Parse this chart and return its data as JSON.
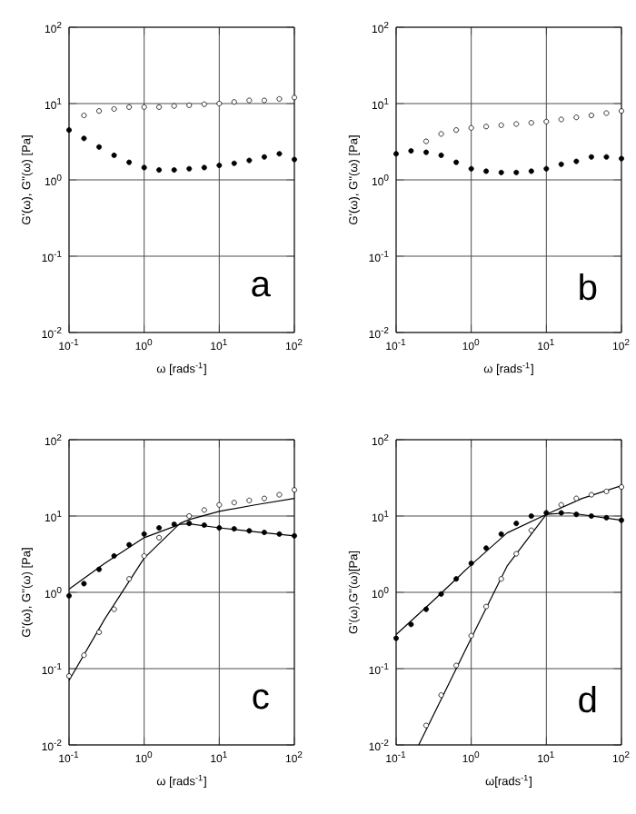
{
  "chart_data": [
    {
      "type": "scatter",
      "xlabel": "ω [rads$^{-1}$]",
      "ylabel": "G'(ω), G''(ω) [Pa]",
      "log": "xy",
      "grid": true,
      "annotations": [
        "a"
      ],
      "xlim": [
        0.1,
        100
      ],
      "ylim": [
        0.01,
        100
      ],
      "xticks": [
        {
          "value": 0.1,
          "label": "10$^{-1}$"
        },
        {
          "value": 1,
          "label": "10$^{0}$"
        },
        {
          "value": 10,
          "label": "10$^{1}$"
        },
        {
          "value": 100,
          "label": "10$^{2}$"
        }
      ],
      "yticks": [
        {
          "value": 0.01,
          "label": "10$^{-2}$"
        },
        {
          "value": 0.1,
          "label": "10$^{-1}$"
        },
        {
          "value": 1,
          "label": "10$^{0}$"
        },
        {
          "value": 10,
          "label": "10$^{1}$"
        },
        {
          "value": 100,
          "label": "10$^{2}$"
        }
      ],
      "series": [
        {
          "color": "#ffffff",
          "marker": "circle",
          "x": [
            0.158,
            0.251,
            0.398,
            0.631,
            1,
            1.58,
            2.51,
            3.98,
            6.31,
            10,
            15.8,
            25.1,
            39.8,
            63.1,
            100
          ],
          "values": [
            7,
            8,
            8.5,
            9,
            9,
            9,
            9.3,
            9.5,
            9.8,
            10,
            10.5,
            11,
            11,
            11.5,
            12
          ]
        },
        {
          "color": "#000000",
          "marker": "circle",
          "x": [
            0.1,
            0.158,
            0.251,
            0.398,
            0.631,
            1,
            1.58,
            2.51,
            3.98,
            6.31,
            10,
            15.8,
            25.1,
            39.8,
            63.1,
            100
          ],
          "values": [
            4.5,
            3.5,
            2.7,
            2.1,
            1.7,
            1.45,
            1.35,
            1.35,
            1.4,
            1.45,
            1.55,
            1.65,
            1.8,
            2.0,
            2.2,
            1.85
          ]
        }
      ]
    },
    {
      "type": "scatter",
      "xlabel": "ω [rads$^{-1}$]",
      "ylabel": "G'(ω), G''(ω) [Pa]",
      "log": "xy",
      "grid": true,
      "annotations": [
        "b"
      ],
      "xlim": [
        0.1,
        100
      ],
      "ylim": [
        0.01,
        100
      ],
      "xticks": [
        {
          "value": 0.1,
          "label": "10$^{-1}$"
        },
        {
          "value": 1,
          "label": "10$^{0}$"
        },
        {
          "value": 10,
          "label": "10$^{1}$"
        },
        {
          "value": 100,
          "label": "10$^{2}$"
        }
      ],
      "yticks": [
        {
          "value": 0.01,
          "label": "10$^{-2}$"
        },
        {
          "value": 0.1,
          "label": "10$^{-1}$"
        },
        {
          "value": 1,
          "label": "10$^{0}$"
        },
        {
          "value": 10,
          "label": "10$^{1}$"
        },
        {
          "value": 100,
          "label": "10$^{2}$"
        }
      ],
      "series": [
        {
          "color": "#ffffff",
          "marker": "circle",
          "x": [
            0.251,
            0.398,
            0.631,
            1,
            1.58,
            2.51,
            3.98,
            6.31,
            10,
            15.8,
            25.1,
            39.8,
            63.1,
            100
          ],
          "values": [
            3.2,
            4,
            4.5,
            4.8,
            5,
            5.2,
            5.4,
            5.6,
            5.8,
            6.2,
            6.6,
            7,
            7.5,
            8
          ]
        },
        {
          "color": "#000000",
          "marker": "circle",
          "x": [
            0.1,
            0.158,
            0.251,
            0.398,
            0.631,
            1,
            1.58,
            2.51,
            3.98,
            6.31,
            10,
            15.8,
            25.1,
            39.8,
            63.1,
            100
          ],
          "values": [
            2.2,
            2.4,
            2.3,
            2.1,
            1.7,
            1.4,
            1.3,
            1.25,
            1.25,
            1.3,
            1.4,
            1.6,
            1.75,
            2.0,
            2.0,
            1.9
          ]
        }
      ]
    },
    {
      "type": "scatter",
      "xlabel": "ω [rads$^{-1}$]",
      "ylabel": "G'(ω), G''(ω) [Pa]",
      "log": "xy",
      "grid": true,
      "annotations": [
        "c"
      ],
      "xlim": [
        0.1,
        100
      ],
      "ylim": [
        0.01,
        100
      ],
      "xticks": [
        {
          "value": 0.1,
          "label": "10$^{-1}$"
        },
        {
          "value": 1,
          "label": "10$^{0}$"
        },
        {
          "value": 10,
          "label": "10$^{1}$"
        },
        {
          "value": 100,
          "label": "10$^{2}$"
        }
      ],
      "yticks": [
        {
          "value": 0.01,
          "label": "10$^{-2}$"
        },
        {
          "value": 0.1,
          "label": "10$^{-1}$"
        },
        {
          "value": 1,
          "label": "10$^{0}$"
        },
        {
          "value": 10,
          "label": "10$^{1}$"
        },
        {
          "value": 100,
          "label": "10$^{2}$"
        }
      ],
      "series": [
        {
          "color": "#ffffff",
          "marker": "circle",
          "x": [
            0.1,
            0.158,
            0.251,
            0.398,
            0.631,
            1,
            1.58,
            2.51,
            3.98,
            6.31,
            10,
            15.8,
            25.1,
            39.8,
            63.1,
            100
          ],
          "values": [
            0.08,
            0.15,
            0.3,
            0.6,
            1.5,
            3,
            5.2,
            null,
            10,
            12,
            14,
            15,
            16,
            17,
            19,
            22
          ]
        },
        {
          "color": "#000000",
          "marker": "circle",
          "x": [
            0.1,
            0.158,
            0.251,
            0.398,
            0.631,
            1,
            1.58,
            2.51,
            3.98,
            6.31,
            10,
            15.8,
            25.1,
            39.8,
            63.1,
            100
          ],
          "values": [
            0.9,
            1.3,
            2.0,
            3.0,
            4.2,
            5.8,
            7,
            7.8,
            8,
            7.6,
            7,
            6.8,
            6.4,
            6.1,
            5.8,
            5.5
          ]
        },
        {
          "type": "line",
          "color": "#000000",
          "marker": "none",
          "x": [
            0.1,
            0.3,
            1,
            3,
            4,
            10,
            30,
            100
          ],
          "values": [
            0.07,
            0.45,
            2.8,
            8,
            9,
            11.5,
            14,
            17
          ]
        },
        {
          "type": "line",
          "color": "#000000",
          "marker": "none",
          "x": [
            0.1,
            0.3,
            1,
            3,
            4,
            10,
            30,
            100
          ],
          "values": [
            1.1,
            2.4,
            5.2,
            7.8,
            7.9,
            7,
            6.2,
            5.5
          ]
        }
      ]
    },
    {
      "type": "scatter",
      "xlabel": "ω[rads$^{-1}$]",
      "ylabel": "G'(ω),G''(ω)[Pa]",
      "log": "xy",
      "grid": true,
      "annotations": [
        "d"
      ],
      "xlim": [
        0.1,
        100
      ],
      "ylim": [
        0.01,
        100
      ],
      "xticks": [
        {
          "value": 0.1,
          "label": "10$^{-1}$"
        },
        {
          "value": 1,
          "label": "10$^{0}$"
        },
        {
          "value": 10,
          "label": "10$^{1}$"
        },
        {
          "value": 100,
          "label": "10$^{2}$"
        }
      ],
      "yticks": [
        {
          "value": 0.01,
          "label": "10$^{-2}$"
        },
        {
          "value": 0.1,
          "label": "10$^{-1}$"
        },
        {
          "value": 1,
          "label": "10$^{0}$"
        },
        {
          "value": 10,
          "label": "10$^{1}$"
        },
        {
          "value": 100,
          "label": "10$^{2}$"
        }
      ],
      "series": [
        {
          "color": "#ffffff",
          "marker": "circle",
          "x": [
            0.251,
            0.398,
            0.631,
            1,
            1.58,
            2.51,
            3.98,
            6.31,
            10,
            15.8,
            25.1,
            39.8,
            63.1,
            100
          ],
          "values": [
            0.018,
            0.045,
            0.11,
            0.27,
            0.65,
            1.5,
            3.2,
            6.5,
            null,
            14,
            17,
            19,
            21,
            24
          ]
        },
        {
          "color": "#000000",
          "marker": "circle",
          "x": [
            0.1,
            0.158,
            0.251,
            0.398,
            0.631,
            1,
            1.58,
            2.51,
            3.98,
            6.31,
            10,
            15.8,
            25.1,
            39.8,
            63.1,
            100
          ],
          "values": [
            0.25,
            0.38,
            0.6,
            0.95,
            1.5,
            2.4,
            3.8,
            5.8,
            8,
            10,
            11,
            11,
            10.5,
            10,
            9.5,
            8.8
          ]
        },
        {
          "type": "line",
          "color": "#000000",
          "marker": "none",
          "x": [
            0.2,
            1,
            3,
            10,
            30,
            100
          ],
          "values": [
            0.01,
            0.25,
            2.2,
            10.5,
            17,
            25
          ]
        },
        {
          "type": "line",
          "color": "#000000",
          "marker": "none",
          "x": [
            0.1,
            0.3,
            1,
            3,
            10,
            20,
            100
          ],
          "values": [
            0.28,
            0.75,
            2.3,
            6,
            10.5,
            11,
            8.8
          ]
        }
      ]
    }
  ]
}
